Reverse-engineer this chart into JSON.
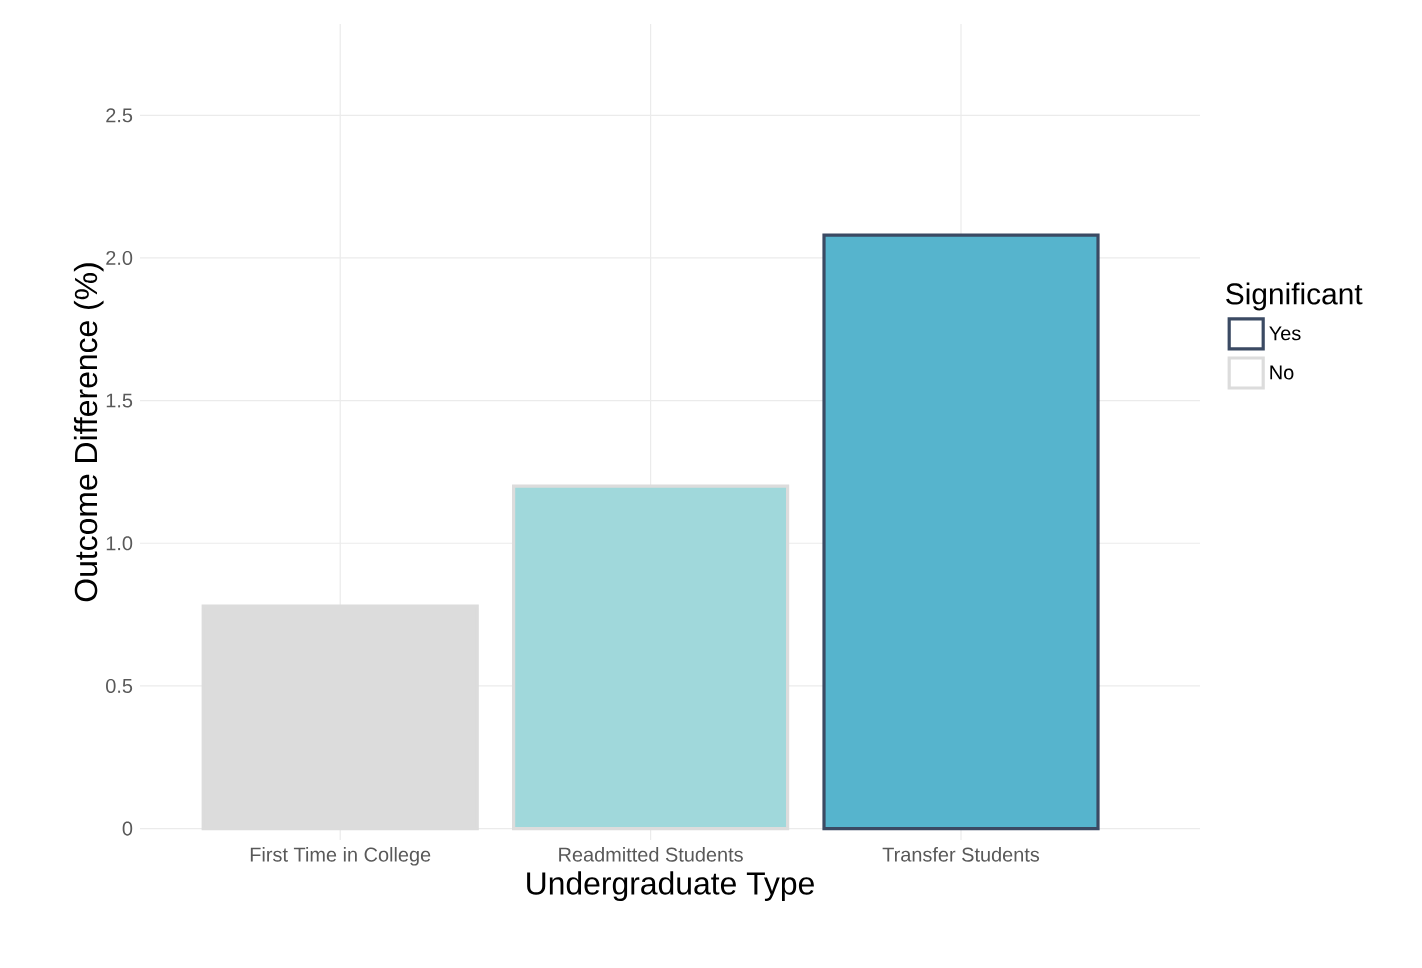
{
  "chart_data": {
    "type": "bar",
    "xlabel": "Undergraduate Type",
    "ylabel": "Outcome Difference (%)",
    "legend_title": "Significant",
    "categories": [
      "First Time in College",
      "Readmitted Students",
      "Transfer Students"
    ],
    "series": [
      {
        "name": "Yes",
        "color": "#3b4a63",
        "colors": [
          "#dcdcdc",
          "#a0d8db",
          "#56b4cd"
        ],
        "values": [
          null,
          null,
          2.08
        ]
      },
      {
        "name": "No",
        "color": "#dcdcdc",
        "colors": [
          "#dcdcdc",
          "#a0d8db",
          "#56b4cd"
        ],
        "values": [
          0.78,
          1.2,
          null
        ]
      }
    ],
    "ylim": [
      -0.04,
      2.82
    ],
    "yticks": [
      {
        "value": 0,
        "label": "0"
      },
      {
        "value": 0.5,
        "label": "0.5"
      },
      {
        "value": 1,
        "label": "1.0"
      },
      {
        "value": 1.5,
        "label": "1.5"
      },
      {
        "value": 2,
        "label": "2.0"
      },
      {
        "value": 2.5,
        "label": "2.5"
      }
    ],
    "grid": true,
    "legend": "right"
  }
}
